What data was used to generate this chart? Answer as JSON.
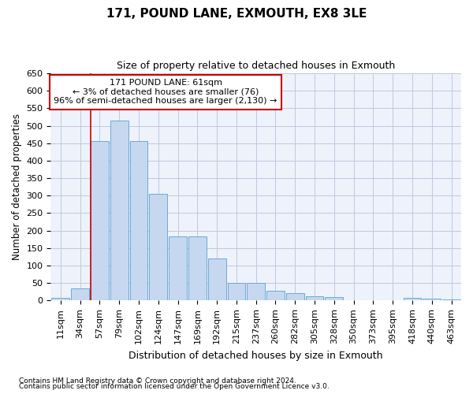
{
  "title": "171, POUND LANE, EXMOUTH, EX8 3LE",
  "subtitle": "Size of property relative to detached houses in Exmouth",
  "xlabel": "Distribution of detached houses by size in Exmouth",
  "ylabel": "Number of detached properties",
  "categories": [
    "11sqm",
    "34sqm",
    "57sqm",
    "79sqm",
    "102sqm",
    "124sqm",
    "147sqm",
    "169sqm",
    "192sqm",
    "215sqm",
    "237sqm",
    "260sqm",
    "282sqm",
    "305sqm",
    "328sqm",
    "350sqm",
    "373sqm",
    "395sqm",
    "418sqm",
    "440sqm",
    "463sqm"
  ],
  "values": [
    7,
    35,
    457,
    515,
    457,
    305,
    183,
    183,
    120,
    50,
    50,
    28,
    20,
    12,
    9,
    0,
    0,
    0,
    8,
    5,
    4
  ],
  "bar_color": "#c5d8f0",
  "bar_edge_color": "#6aaad4",
  "background_color": "#eef2fb",
  "grid_color": "#c0c8e0",
  "ylim": [
    0,
    650
  ],
  "yticks": [
    0,
    50,
    100,
    150,
    200,
    250,
    300,
    350,
    400,
    450,
    500,
    550,
    600,
    650
  ],
  "red_line_index": 2,
  "annotation_line1": "171 POUND LANE: 61sqm",
  "annotation_line2": "← 3% of detached houses are smaller (76)",
  "annotation_line3": "96% of semi-detached houses are larger (2,130) →",
  "annotation_box_color": "#ffffff",
  "annotation_box_edge": "#cc0000",
  "footer_line1": "Contains HM Land Registry data © Crown copyright and database right 2024.",
  "footer_line2": "Contains public sector information licensed under the Open Government Licence v3.0."
}
